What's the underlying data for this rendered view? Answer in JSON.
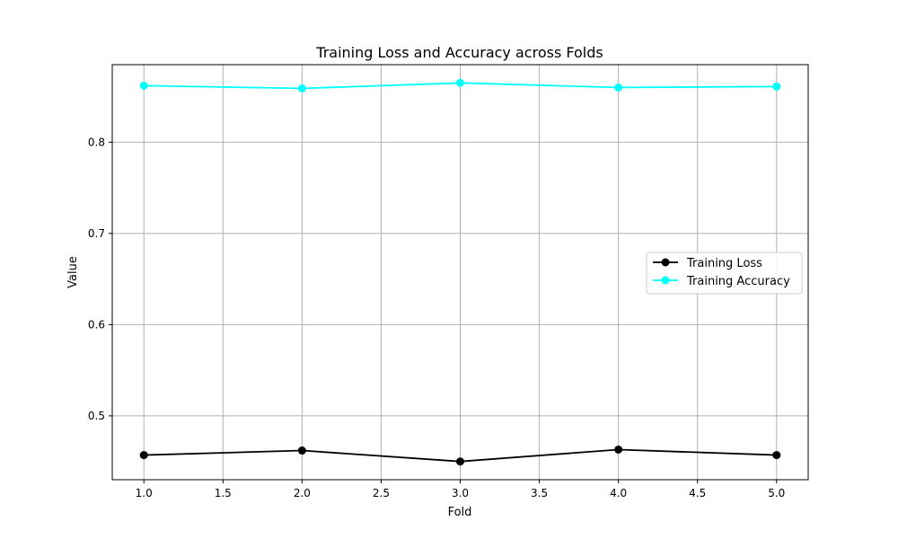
{
  "chart_data": {
    "type": "line",
    "title": "Training Loss and Accuracy across Folds",
    "xlabel": "Fold",
    "ylabel": "Value",
    "x": [
      1.0,
      2.0,
      3.0,
      4.0,
      5.0
    ],
    "xlim": [
      0.8,
      5.2
    ],
    "ylim": [
      0.43,
      0.885
    ],
    "xticks": [
      1.0,
      1.5,
      2.0,
      2.5,
      3.0,
      3.5,
      4.0,
      4.5,
      5.0
    ],
    "xtick_labels": [
      "1.0",
      "1.5",
      "2.0",
      "2.5",
      "3.0",
      "3.5",
      "4.0",
      "4.5",
      "5.0"
    ],
    "yticks": [
      0.5,
      0.6,
      0.7,
      0.8
    ],
    "ytick_labels": [
      "0.5",
      "0.6",
      "0.7",
      "0.8"
    ],
    "grid": true,
    "legend_position": "center-right",
    "series": [
      {
        "name": "Training Loss",
        "color": "#000000",
        "marker": "circle",
        "values": [
          0.457,
          0.462,
          0.45,
          0.463,
          0.457
        ]
      },
      {
        "name": "Training Accuracy",
        "color": "#00ffff",
        "marker": "circle",
        "values": [
          0.862,
          0.859,
          0.865,
          0.86,
          0.861
        ]
      }
    ]
  }
}
